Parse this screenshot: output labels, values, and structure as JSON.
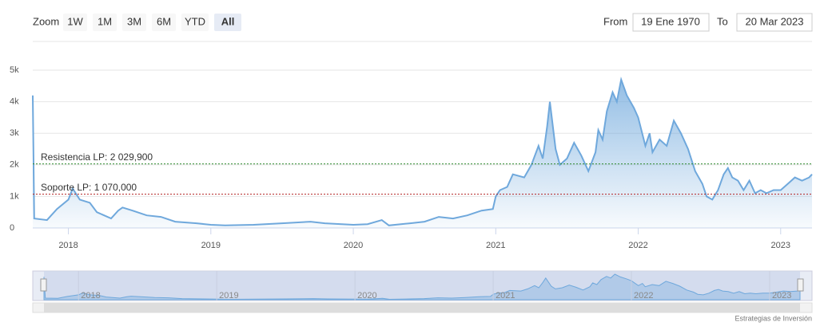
{
  "range_selector": {
    "zoom_label": "Zoom",
    "buttons": [
      "1W",
      "1M",
      "3M",
      "6M",
      "YTD",
      "All"
    ],
    "selected": "All",
    "from_label": "From",
    "from_value": "19 Ene 1970",
    "to_label": "To",
    "to_value": "20 Mar 2023"
  },
  "chart_data": {
    "type": "area",
    "color": "#6fa8dc",
    "x": [
      2017.75,
      2017.76,
      2017.85,
      2017.92,
      2018.0,
      2018.03,
      2018.08,
      2018.15,
      2018.2,
      2018.3,
      2018.35,
      2018.38,
      2018.45,
      2018.55,
      2018.65,
      2018.75,
      2018.9,
      2019.0,
      2019.1,
      2019.3,
      2019.5,
      2019.7,
      2019.8,
      2020.0,
      2020.1,
      2020.2,
      2020.25,
      2020.4,
      2020.5,
      2020.6,
      2020.7,
      2020.8,
      2020.9,
      2020.98,
      2021.0,
      2021.03,
      2021.08,
      2021.12,
      2021.2,
      2021.25,
      2021.3,
      2021.33,
      2021.36,
      2021.38,
      2021.42,
      2021.45,
      2021.5,
      2021.55,
      2021.6,
      2021.65,
      2021.7,
      2021.72,
      2021.75,
      2021.78,
      2021.82,
      2021.85,
      2021.88,
      2021.92,
      2021.97,
      2022.0,
      2022.05,
      2022.08,
      2022.1,
      2022.15,
      2022.2,
      2022.25,
      2022.3,
      2022.35,
      2022.4,
      2022.45,
      2022.48,
      2022.52,
      2022.56,
      2022.6,
      2022.63,
      2022.66,
      2022.7,
      2022.74,
      2022.78,
      2022.82,
      2022.86,
      2022.9,
      2022.95,
      2023.0,
      2023.05,
      2023.1,
      2023.15,
      2023.2,
      2023.22
    ],
    "values": [
      4200,
      300,
      250,
      600,
      900,
      1250,
      900,
      800,
      500,
      300,
      550,
      650,
      550,
      400,
      350,
      200,
      150,
      100,
      80,
      100,
      150,
      200,
      150,
      100,
      120,
      250,
      80,
      150,
      200,
      350,
      300,
      400,
      550,
      600,
      1000,
      1200,
      1300,
      1700,
      1600,
      2000,
      2600,
      2200,
      3200,
      4000,
      2500,
      2000,
      2200,
      2700,
      2300,
      1800,
      2400,
      3100,
      2800,
      3700,
      4300,
      4000,
      4700,
      4200,
      3800,
      3500,
      2600,
      3000,
      2400,
      2800,
      2600,
      3400,
      3000,
      2500,
      1800,
      1400,
      1000,
      900,
      1200,
      1700,
      1900,
      1600,
      1500,
      1200,
      1500,
      1100,
      1200,
      1100,
      1200,
      1200,
      1400,
      1600,
      1500,
      1600,
      1700
    ],
    "xlim": [
      2017.75,
      2023.22
    ],
    "xticks": [
      2018,
      2019,
      2020,
      2021,
      2022,
      2023
    ],
    "ylim": [
      0,
      5000
    ],
    "yticks": [
      0,
      {
        "value": 1000,
        "label": "1k"
      },
      {
        "value": 2000,
        "label": "2k"
      },
      {
        "value": 3000,
        "label": "3k"
      },
      {
        "value": 4000,
        "label": "4k"
      },
      {
        "value": 5000,
        "label": "5k"
      }
    ],
    "grid": true,
    "plot_lines": [
      {
        "value": 2029.9,
        "label": "Resistencia LP: 2 029,900",
        "color": "#2e8b2e"
      },
      {
        "value": 1070,
        "label": "Soporte LP: 1 070,000",
        "color": "#b22222"
      }
    ]
  },
  "credits": "Estrategias de Inversión"
}
